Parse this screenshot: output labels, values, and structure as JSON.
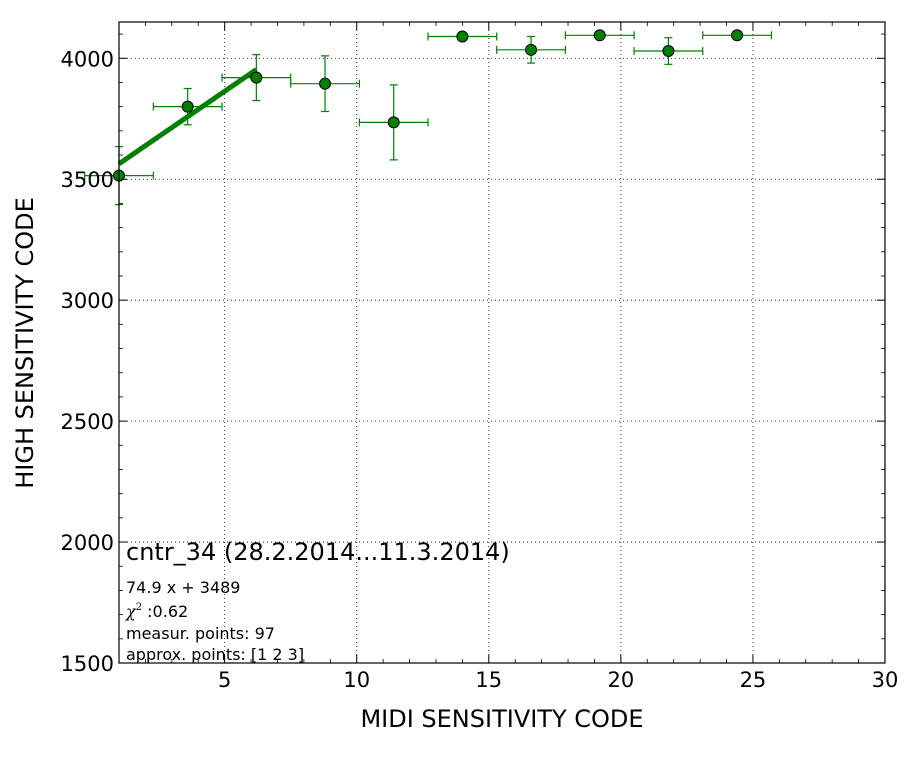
{
  "chart_data": {
    "type": "scatter",
    "xlabel": "MIDI SENSITIVITY CODE",
    "ylabel": "HIGH SENSITIVITY CODE",
    "xlim": [
      1,
      30
    ],
    "ylim": [
      1500,
      4150
    ],
    "x_ticks": [
      5,
      10,
      15,
      20,
      25,
      30
    ],
    "y_ticks": [
      1500,
      2000,
      2500,
      3000,
      3500,
      4000
    ],
    "grid": true,
    "colors": {
      "series": "#008000",
      "marker_face": "#008000",
      "marker_edge": "#000000",
      "fit_line": "#008000"
    },
    "series": [
      {
        "points": [
          {
            "x": 1.0,
            "y": 3515,
            "xerr": 1.3,
            "yerr": 120
          },
          {
            "x": 3.6,
            "y": 3800,
            "xerr": 1.3,
            "yerr": 75
          },
          {
            "x": 6.2,
            "y": 3920,
            "xerr": 1.3,
            "yerr": 95
          },
          {
            "x": 8.8,
            "y": 3895,
            "xerr": 1.3,
            "yerr": 115
          },
          {
            "x": 11.4,
            "y": 3735,
            "xerr": 1.3,
            "yerr": 155
          },
          {
            "x": 14.0,
            "y": 4090,
            "xerr": 1.3,
            "yerr": 0
          },
          {
            "x": 16.6,
            "y": 4035,
            "xerr": 1.3,
            "yerr": 55
          },
          {
            "x": 19.2,
            "y": 4095,
            "xerr": 1.3,
            "yerr": 0
          },
          {
            "x": 21.8,
            "y": 4030,
            "xerr": 1.3,
            "yerr": 55
          },
          {
            "x": 24.4,
            "y": 4095,
            "xerr": 1.3,
            "yerr": 0
          }
        ]
      }
    ],
    "fit_line": {
      "slope": 74.9,
      "intercept": 3489,
      "x_range": [
        1.0,
        6.2
      ]
    },
    "annotations": {
      "title": "cntr_34 (28.2.2014...11.3.2014)",
      "equation": "74.9 x + 3489",
      "chi_symbol": "χ",
      "chi_exponent": "2",
      "chi_value": " :0.62",
      "measur_points": "measur. points: 97",
      "approx_points": "approx. points: [1 2 3]"
    }
  }
}
